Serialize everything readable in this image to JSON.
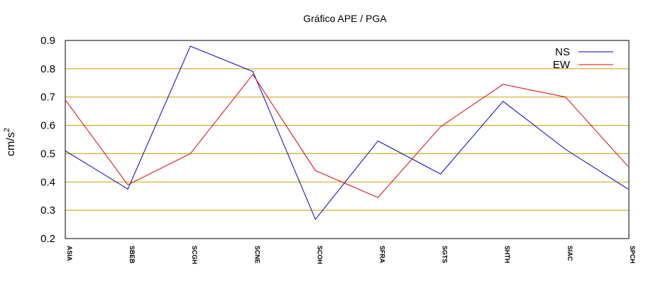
{
  "chart_data": {
    "type": "line",
    "title": "Gráfico  APE / PGA",
    "ylabel": "cm/s",
    "ylabel_superscript": "2",
    "xlabel": "",
    "categories": [
      "ASIA",
      "SBEB",
      "SCGH",
      "SCNE",
      "SCOH",
      "SFRA",
      "SGTS",
      "SHTH",
      "SIAC",
      "SPCH"
    ],
    "ylim": [
      0.2,
      0.9
    ],
    "yticks": [
      "0.2",
      "0.3",
      "0.4",
      "0.5",
      "0.6",
      "0.7",
      "0.8",
      "0.9"
    ],
    "grid": true,
    "grid_color": "#c8a000",
    "legend_position": "top-right",
    "series": [
      {
        "name": "NS",
        "color": "#0000cc",
        "values": [
          0.51,
          0.375,
          0.88,
          0.79,
          0.268,
          0.545,
          0.428,
          0.685,
          0.515,
          0.375
        ]
      },
      {
        "name": "EW",
        "color": "#dd0000",
        "values": [
          0.69,
          0.39,
          0.5,
          0.78,
          0.44,
          0.345,
          0.595,
          0.745,
          0.7,
          0.455
        ]
      }
    ]
  }
}
